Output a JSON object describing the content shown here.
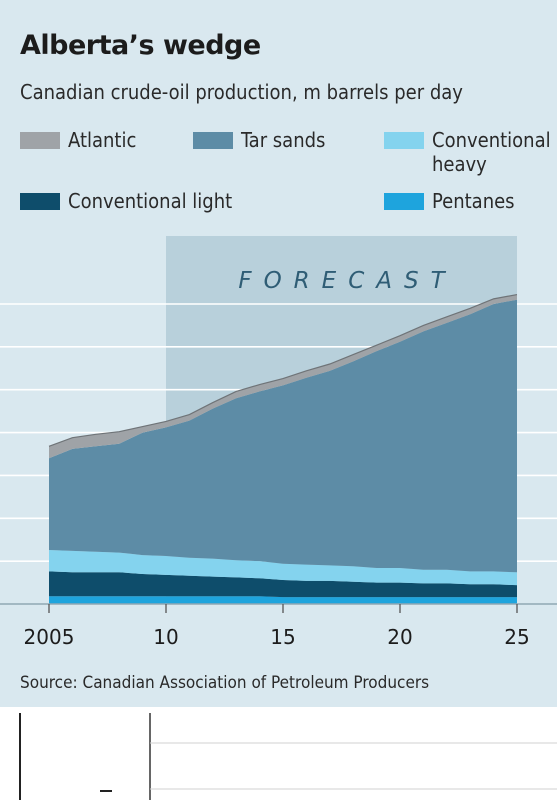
{
  "title": "Alberta’s wedge",
  "subtitle": "Canadian crude-oil production, m barrels per day",
  "source": "Source: Canadian Association of Petroleum Producers",
  "colors": {
    "background": "#d9e8ef",
    "forecast_band": "#b8d0db",
    "gridline": "#ffffff"
  },
  "chart_data": {
    "type": "area",
    "stacked": true,
    "annotation": "FORECAST",
    "forecast_range": [
      2010,
      2025
    ],
    "x": [
      2005,
      2006,
      2007,
      2008,
      2009,
      2010,
      2011,
      2012,
      2013,
      2014,
      2015,
      2016,
      2017,
      2018,
      2019,
      2020,
      2021,
      2022,
      2023,
      2024,
      2025
    ],
    "x_ticks": [
      "2005",
      "10",
      "15",
      "20",
      "25"
    ],
    "x_tick_values": [
      2005,
      2010,
      2015,
      2020,
      2025
    ],
    "ylim": [
      0,
      4.2
    ],
    "y_gridlines": [
      0.5,
      1.0,
      1.5,
      2.0,
      2.5,
      3.0,
      3.5
    ],
    "legend": [
      {
        "label": "Atlantic",
        "color": "#9fa3a7"
      },
      {
        "label": "Tar sands",
        "color": "#5d8ca6"
      },
      {
        "label": "Conventional heavy",
        "label_lines": [
          "Conventional",
          "heavy"
        ],
        "color": "#84d3ee"
      },
      {
        "label": "Conventional light",
        "color": "#0e4d6b"
      },
      {
        "label": "Pentanes",
        "color": "#1ea4dd"
      }
    ],
    "series": [
      {
        "name": "Pentanes",
        "color": "#1ea4dd",
        "values": [
          0.09,
          0.09,
          0.09,
          0.09,
          0.09,
          0.09,
          0.09,
          0.09,
          0.09,
          0.09,
          0.08,
          0.08,
          0.08,
          0.08,
          0.08,
          0.08,
          0.08,
          0.08,
          0.08,
          0.08,
          0.08
        ]
      },
      {
        "name": "Conventional light",
        "color": "#0e4d6b",
        "values": [
          0.29,
          0.28,
          0.28,
          0.28,
          0.26,
          0.25,
          0.24,
          0.23,
          0.22,
          0.21,
          0.2,
          0.19,
          0.19,
          0.18,
          0.17,
          0.17,
          0.16,
          0.16,
          0.15,
          0.15,
          0.14
        ]
      },
      {
        "name": "Conventional heavy",
        "color": "#84d3ee",
        "values": [
          0.25,
          0.25,
          0.24,
          0.23,
          0.22,
          0.22,
          0.21,
          0.21,
          0.2,
          0.2,
          0.19,
          0.19,
          0.18,
          0.18,
          0.17,
          0.17,
          0.16,
          0.16,
          0.15,
          0.15,
          0.15
        ]
      },
      {
        "name": "Tar sands",
        "color": "#5d8ca6",
        "values": [
          1.07,
          1.19,
          1.23,
          1.27,
          1.43,
          1.5,
          1.6,
          1.75,
          1.89,
          1.98,
          2.08,
          2.18,
          2.27,
          2.39,
          2.53,
          2.64,
          2.78,
          2.88,
          3.0,
          3.12,
          3.18
        ]
      },
      {
        "name": "Atlantic",
        "color": "#9fa3a7",
        "values": [
          0.14,
          0.13,
          0.14,
          0.14,
          0.07,
          0.07,
          0.07,
          0.07,
          0.08,
          0.08,
          0.08,
          0.08,
          0.08,
          0.08,
          0.07,
          0.07,
          0.07,
          0.07,
          0.07,
          0.06,
          0.06
        ]
      }
    ]
  }
}
